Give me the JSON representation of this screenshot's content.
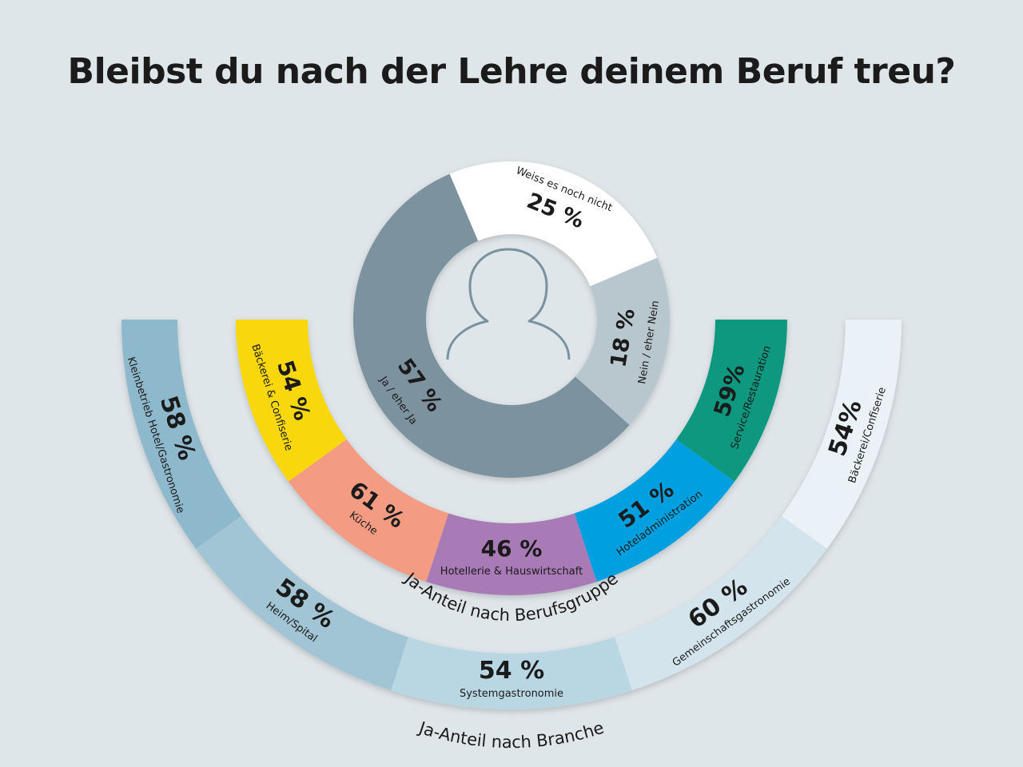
{
  "title": "Bleibst du nach der Lehre deinem Beruf treu?",
  "chart_data": [
    {
      "type": "pie",
      "subtype": "donut",
      "title": "",
      "slices": [
        {
          "label": "Ja / eher Ja",
          "value": 57,
          "value_label": "57 %",
          "color": "#7b929e"
        },
        {
          "label": "Weiss es noch nicht",
          "value": 25,
          "value_label": "25 %",
          "color": "#ffffff"
        },
        {
          "label": "Nein / eher Nein",
          "value": 18,
          "value_label": "18 %",
          "color": "#b8c6cd"
        }
      ]
    },
    {
      "type": "bar",
      "subtype": "semicircle",
      "title": "Ja-Anteil nach Berufsgruppe",
      "categories": [
        "Bäckerei & Confiserie",
        "Küche",
        "Hotellerie & Hauswirtschaft",
        "Hoteladministration",
        "Service/Restauration"
      ],
      "values": [
        54,
        61,
        46,
        51,
        59
      ],
      "value_labels": [
        "54 %",
        "61 %",
        "46 %",
        "51 %",
        "59%"
      ],
      "colors": [
        "#f8d707",
        "#f39c83",
        "#a87ab6",
        "#00a0e0",
        "#10987f"
      ]
    },
    {
      "type": "bar",
      "subtype": "semicircle",
      "title": "Ja-Anteil nach Branche",
      "categories": [
        "Kleinbetrieb Hotel/Gastronomie",
        "Heim/Spital",
        "Systemgastronomie",
        "Gemeinschaftsgastronomie",
        "Bäckerei/Confiserie"
      ],
      "values": [
        58,
        58,
        54,
        60,
        54
      ],
      "value_labels": [
        "58 %",
        "58 %",
        "54 %",
        "60 %",
        "54%"
      ],
      "colors": [
        "#8eb8cb",
        "#a1c5d5",
        "#b9d6e3",
        "#d3e4ed",
        "#eaf2f7"
      ]
    }
  ]
}
